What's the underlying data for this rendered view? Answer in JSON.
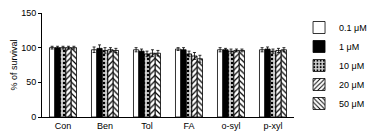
{
  "chart_data": {
    "type": "bar",
    "ylabel": "% of survival",
    "categories": [
      "Con",
      "Ben",
      "Tol",
      "FA",
      "o-syl",
      "p-xyl"
    ],
    "series": [
      {
        "name": "0.1 μM",
        "color": "#ffffff",
        "values": [
          100,
          97,
          97,
          98,
          97,
          97
        ],
        "errors": [
          2,
          4,
          3,
          2,
          3,
          3
        ]
      },
      {
        "name": "1 μM",
        "color": "#000000",
        "values": [
          100,
          99,
          95,
          97,
          97,
          98
        ],
        "errors": [
          2,
          5,
          3,
          3,
          2,
          3
        ]
      },
      {
        "name": "10 μM",
        "color": "#d0d0d0",
        "values": [
          100,
          96,
          91,
          91,
          95,
          95
        ],
        "errors": [
          2,
          4,
          4,
          4,
          3,
          3
        ]
      },
      {
        "name": "20 μM",
        "color": "#ffffff",
        "values": [
          100,
          97,
          92,
          88,
          96,
          96
        ],
        "errors": [
          2,
          3,
          5,
          5,
          2,
          3
        ]
      },
      {
        "name": "50 μM",
        "color": "#ffffff",
        "values": [
          100,
          96,
          92,
          84,
          96,
          97
        ],
        "errors": [
          2,
          3,
          4,
          5,
          2,
          3
        ]
      }
    ],
    "ylim": [
      0,
      150
    ],
    "yticks": [
      0,
      50,
      100,
      150
    ],
    "grid": false,
    "legend": "right"
  }
}
